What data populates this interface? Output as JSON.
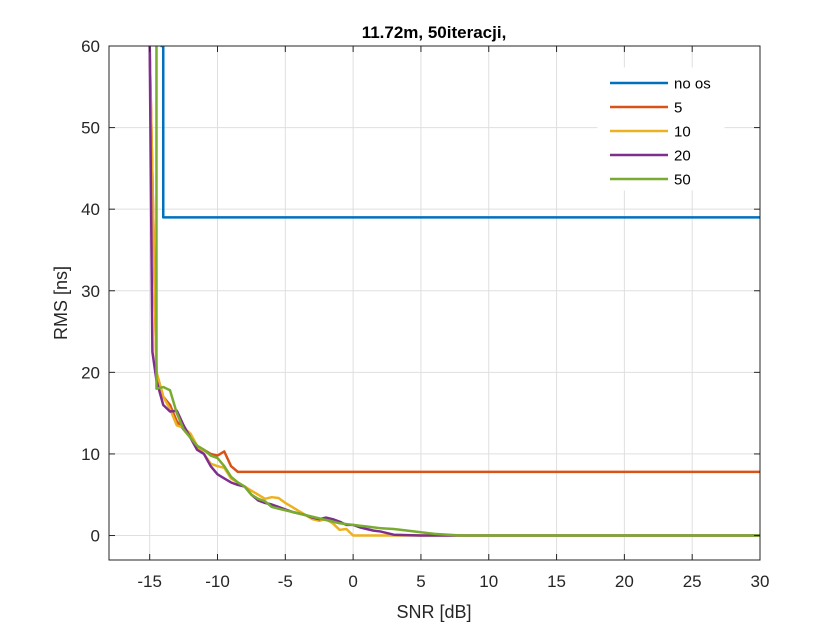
{
  "chart_data": {
    "type": "line",
    "title": "11.72m, 50iteracji,",
    "xlabel": "SNR [dB]",
    "ylabel": "RMS [ns]",
    "xlim": [
      -18,
      30
    ],
    "ylim": [
      -3,
      60
    ],
    "xticks": [
      -15,
      -10,
      -5,
      0,
      5,
      10,
      15,
      20,
      25,
      30
    ],
    "yticks": [
      0,
      10,
      20,
      30,
      40,
      50,
      60
    ],
    "xtick_labels": [
      "-15",
      "-10",
      "-5",
      "0",
      "5",
      "10",
      "15",
      "20",
      "25",
      "30"
    ],
    "ytick_labels": [
      "0",
      "10",
      "20",
      "30",
      "40",
      "50",
      "60"
    ],
    "grid": true,
    "legend_position": "top-right",
    "series": [
      {
        "name": "no os",
        "color": "#0072BD",
        "x": [
          -14.2,
          -14,
          -14,
          -13,
          -10,
          -5,
          0,
          5,
          10,
          15,
          20,
          25,
          30
        ],
        "y": [
          60,
          60,
          39,
          39,
          39,
          39,
          39,
          39,
          39,
          39,
          39,
          39,
          39
        ]
      },
      {
        "name": "5",
        "color": "#D95319",
        "x": [
          -15,
          -14.5,
          -14,
          -13.5,
          -13,
          -12.5,
          -12,
          -11.5,
          -11,
          -10.5,
          -10,
          -9.5,
          -9,
          -8.5,
          -8,
          -5,
          0,
          5,
          10,
          15,
          20,
          25,
          30
        ],
        "y": [
          60,
          20,
          17,
          16,
          14,
          13,
          12,
          11,
          10.5,
          10,
          9.8,
          10.3,
          8.5,
          7.8,
          7.8,
          7.8,
          7.8,
          7.8,
          7.8,
          7.8,
          7.8,
          7.8,
          7.8
        ]
      },
      {
        "name": "10",
        "color": "#EDB120",
        "x": [
          -15,
          -14.5,
          -14,
          -13.5,
          -13,
          -12.5,
          -12,
          -11.5,
          -11,
          -10.5,
          -10,
          -9.5,
          -9,
          -8.5,
          -8,
          -7.5,
          -7,
          -6.5,
          -6,
          -5.5,
          -5,
          -4.5,
          -4,
          -3.5,
          -3,
          -2.5,
          -2,
          -1.5,
          -1,
          -0.5,
          0,
          1,
          2,
          3,
          5,
          10,
          15,
          20,
          25,
          30
        ],
        "y": [
          60,
          20,
          17,
          15.5,
          13.5,
          13.2,
          12.5,
          11,
          10,
          8.8,
          8.5,
          8.3,
          7,
          6.5,
          6,
          5.5,
          5,
          4.5,
          4.7,
          4.6,
          4,
          3.5,
          3,
          2.5,
          2,
          1.8,
          2,
          1.5,
          0.7,
          0.8,
          0,
          0,
          0,
          0,
          0,
          0,
          0,
          0,
          0,
          0
        ]
      },
      {
        "name": "20",
        "color": "#7E2F8E",
        "x": [
          -15,
          -14.8,
          -14.5,
          -14,
          -13.5,
          -13,
          -12.5,
          -12,
          -11.5,
          -11,
          -10.5,
          -10,
          -9.5,
          -9,
          -8.5,
          -8,
          -7.5,
          -7,
          -6.5,
          -6,
          -5.5,
          -5,
          -4.5,
          -4,
          -3.5,
          -3,
          -2.5,
          -2,
          -1.5,
          -1,
          -0.5,
          0,
          0.5,
          1,
          1.5,
          2,
          2.5,
          3,
          5,
          10,
          15,
          20,
          25,
          30
        ],
        "y": [
          60,
          22.5,
          19,
          16,
          15.2,
          15.3,
          13.5,
          12,
          10.5,
          10,
          8.5,
          7.5,
          7,
          6.5,
          6.2,
          6,
          5,
          4.3,
          4,
          3.8,
          3.5,
          3.2,
          2.9,
          2.7,
          2.5,
          2.2,
          2,
          2.2,
          2,
          1.7,
          1.3,
          1.3,
          1,
          0.8,
          0.6,
          0.5,
          0.3,
          0.1,
          0,
          0,
          0,
          0,
          0,
          0
        ]
      },
      {
        "name": "50",
        "color": "#77AC30",
        "x": [
          -14.5,
          -14.5,
          -14,
          -13.5,
          -13,
          -12.5,
          -12,
          -11.5,
          -11,
          -10.5,
          -10,
          -9.5,
          -9,
          -8.5,
          -8,
          -7.5,
          -7,
          -6.5,
          -6,
          -5.5,
          -5,
          -4.5,
          -4,
          -3.5,
          -3,
          -2.5,
          -2,
          -1.5,
          -1,
          -0.5,
          0,
          0.5,
          1,
          2,
          3,
          4,
          5,
          6,
          7,
          8,
          9,
          10,
          15,
          20,
          25,
          30
        ],
        "y": [
          60,
          18,
          18.2,
          17.8,
          15,
          13,
          12,
          11,
          10.5,
          9.8,
          9.5,
          8.5,
          7.2,
          6.5,
          6,
          5,
          4.5,
          4.2,
          3.5,
          3.3,
          3.1,
          2.9,
          2.7,
          2.5,
          2.3,
          2.1,
          1.9,
          1.7,
          1.5,
          1.4,
          1.3,
          1.2,
          1.1,
          0.9,
          0.8,
          0.6,
          0.4,
          0.2,
          0.1,
          0,
          0,
          0,
          0,
          0,
          0,
          0
        ]
      }
    ]
  }
}
